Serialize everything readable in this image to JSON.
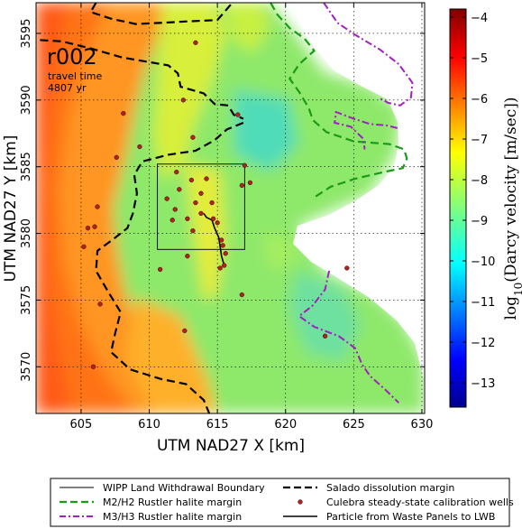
{
  "chart_data": {
    "type": "heatmap",
    "panel_label": "r002",
    "annotation_line1": "travel time",
    "annotation_line2": "4807 yr",
    "xlabel": "UTM NAD27 X [km]",
    "ylabel": "UTM NAD27 Y [km]",
    "xlim": [
      601.7,
      630.2
    ],
    "ylim": [
      3566.5,
      3597.3
    ],
    "xticks": [
      605,
      610,
      615,
      620,
      625,
      630
    ],
    "yticks": [
      3570,
      3575,
      3580,
      3585,
      3590,
      3595
    ],
    "grid": true,
    "colorbar": {
      "label_base": "log",
      "label_sub": "10",
      "label_rest": "(Darcy velocity [m/sec])",
      "range": [
        -13.6,
        -3.8
      ],
      "ticks": [
        -13,
        -12,
        -11,
        -10,
        -9,
        -8,
        -7,
        -6,
        -5,
        -4
      ],
      "tick_labels": [
        "−13",
        "−12",
        "−11",
        "−10",
        "−9",
        "−8",
        "−7",
        "−6",
        "−5",
        "−4"
      ]
    },
    "wipp_boundary": {
      "x": [
        610.6,
        617.0
      ],
      "y": [
        3578.8,
        3585.2
      ]
    },
    "calibration_wells": [
      [
        613.4,
        3594.3
      ],
      [
        608.1,
        3589.0
      ],
      [
        612.5,
        3590.0
      ],
      [
        616.5,
        3588.9
      ],
      [
        609.3,
        3586.5
      ],
      [
        613.2,
        3587.2
      ],
      [
        617.0,
        3585.1
      ],
      [
        607.6,
        3585.7
      ],
      [
        612.0,
        3584.6
      ],
      [
        613.1,
        3584.0
      ],
      [
        614.2,
        3584.1
      ],
      [
        612.2,
        3583.3
      ],
      [
        613.8,
        3583.0
      ],
      [
        611.3,
        3582.6
      ],
      [
        613.4,
        3582.3
      ],
      [
        614.6,
        3582.3
      ],
      [
        616.8,
        3583.6
      ],
      [
        617.4,
        3583.8
      ],
      [
        611.9,
        3581.8
      ],
      [
        612.8,
        3581.1
      ],
      [
        613.8,
        3581.5
      ],
      [
        611.7,
        3581.0
      ],
      [
        614.7,
        3581.1
      ],
      [
        615.0,
        3580.8
      ],
      [
        613.2,
        3580.2
      ],
      [
        615.3,
        3579.5
      ],
      [
        615.4,
        3579.1
      ],
      [
        615.6,
        3578.5
      ],
      [
        615.5,
        3577.6
      ],
      [
        615.2,
        3577.4
      ],
      [
        616.8,
        3575.4
      ],
      [
        612.8,
        3578.3
      ],
      [
        610.8,
        3577.3
      ],
      [
        605.2,
        3579.0
      ],
      [
        605.5,
        3580.4
      ],
      [
        606.2,
        3582.0
      ],
      [
        606.0,
        3580.5
      ],
      [
        606.4,
        3574.7
      ],
      [
        612.6,
        3572.7
      ],
      [
        605.9,
        3570.0
      ],
      [
        622.9,
        3572.3
      ],
      [
        624.5,
        3577.4
      ]
    ],
    "particle_path": [
      [
        614.0,
        3581.5
      ],
      [
        614.2,
        3581.2
      ],
      [
        614.6,
        3581.0
      ],
      [
        614.8,
        3580.4
      ],
      [
        615.1,
        3579.7
      ],
      [
        615.2,
        3579.0
      ],
      [
        615.3,
        3578.3
      ],
      [
        615.5,
        3577.6
      ]
    ],
    "salado_margin_a": [
      [
        602.0,
        3594.5
      ],
      [
        603.6,
        3594.4
      ],
      [
        605.6,
        3593.9
      ],
      [
        608.0,
        3593.2
      ],
      [
        611.4,
        3592.6
      ],
      [
        612.1,
        3592.0
      ],
      [
        612.3,
        3591.0
      ],
      [
        614.0,
        3590.5
      ],
      [
        614.8,
        3589.7
      ],
      [
        615.8,
        3589.6
      ],
      [
        616.2,
        3588.9
      ],
      [
        616.9,
        3588.6
      ]
    ],
    "salado_margin_b": [
      [
        616.9,
        3588.3
      ],
      [
        615.7,
        3587.8
      ],
      [
        614.8,
        3587.0
      ],
      [
        613.4,
        3586.2
      ],
      [
        611.4,
        3585.9
      ],
      [
        609.5,
        3585.4
      ],
      [
        608.9,
        3584.4
      ],
      [
        609.1,
        3583.0
      ],
      [
        608.8,
        3581.5
      ],
      [
        608.4,
        3580.4
      ],
      [
        607.4,
        3579.6
      ],
      [
        606.2,
        3578.7
      ],
      [
        606.1,
        3577.2
      ],
      [
        607.0,
        3575.6
      ],
      [
        607.9,
        3574.1
      ],
      [
        607.5,
        3572.5
      ],
      [
        607.2,
        3571.1
      ],
      [
        608.6,
        3569.8
      ],
      [
        610.8,
        3569.1
      ],
      [
        612.7,
        3568.7
      ],
      [
        614.0,
        3567.5
      ],
      [
        614.4,
        3566.5
      ]
    ],
    "salado_margin_top": [
      [
        606.1,
        3597.3
      ],
      [
        605.7,
        3596.6
      ],
      [
        607.2,
        3596.1
      ],
      [
        609.0,
        3595.7
      ],
      [
        611.0,
        3595.8
      ],
      [
        612.8,
        3595.9
      ],
      [
        615.0,
        3596.0
      ],
      [
        616.1,
        3597.3
      ]
    ],
    "m2h2_margin": [
      [
        618.9,
        3597.3
      ],
      [
        619.4,
        3596.4
      ],
      [
        620.3,
        3595.4
      ],
      [
        621.4,
        3594.6
      ],
      [
        622.1,
        3593.7
      ],
      [
        621.0,
        3592.7
      ],
      [
        620.3,
        3591.6
      ],
      [
        621.0,
        3590.6
      ],
      [
        621.7,
        3589.4
      ],
      [
        622.0,
        3588.5
      ],
      [
        623.0,
        3587.6
      ],
      [
        625.0,
        3586.9
      ],
      [
        627.6,
        3586.7
      ],
      [
        628.7,
        3586.3
      ],
      [
        628.9,
        3585.6
      ],
      [
        628.6,
        3584.9
      ],
      [
        627.2,
        3584.6
      ],
      [
        625.1,
        3584.1
      ],
      [
        623.3,
        3583.5
      ],
      [
        622.1,
        3582.7
      ]
    ],
    "m3h3_margin_a": [
      [
        622.8,
        3597.3
      ],
      [
        623.8,
        3595.8
      ],
      [
        625.1,
        3594.9
      ],
      [
        626.9,
        3593.8
      ],
      [
        628.3,
        3592.7
      ],
      [
        629.3,
        3591.3
      ],
      [
        629.2,
        3590.2
      ],
      [
        628.4,
        3589.6
      ],
      [
        627.5,
        3589.8
      ],
      [
        626.8,
        3590.2
      ]
    ],
    "m3h3_margin_b": [
      [
        628.2,
        3587.9
      ],
      [
        627.4,
        3588.1
      ],
      [
        626.2,
        3588.2
      ],
      [
        625.0,
        3588.6
      ],
      [
        623.7,
        3589.1
      ],
      [
        623.6,
        3588.3
      ],
      [
        624.8,
        3588.0
      ],
      [
        625.7,
        3587.1
      ],
      [
        625.8,
        3586.3
      ]
    ],
    "m3h3_margin_c": [
      [
        623.2,
        3577.2
      ],
      [
        622.9,
        3575.8
      ],
      [
        622.0,
        3574.6
      ],
      [
        621.0,
        3573.8
      ],
      [
        622.1,
        3573.0
      ],
      [
        623.9,
        3572.3
      ],
      [
        625.1,
        3571.4
      ],
      [
        625.6,
        3570.2
      ],
      [
        626.2,
        3569.3
      ],
      [
        627.3,
        3568.3
      ],
      [
        628.3,
        3567.3
      ]
    ],
    "legend": [
      {
        "label": "WIPP Land Withdrawal Boundary",
        "style": "thin-solid"
      },
      {
        "label": "Salado dissolution margin",
        "style": "black-dashed"
      },
      {
        "label": "M2/H2 Rustler halite margin",
        "style": "green-dashed"
      },
      {
        "label": "Culebra steady-state calibration wells",
        "style": "red-dot"
      },
      {
        "label": "M3/H3 Rustler halite margin",
        "style": "purple-dashdot"
      },
      {
        "label": "Particle from Waste Panels to LWB",
        "style": "black-solid"
      }
    ],
    "colors": {
      "m2h2": "#1a9a1a",
      "m3h3": "#a020c0",
      "wells": "#b0231e",
      "salado": "#000000"
    }
  }
}
